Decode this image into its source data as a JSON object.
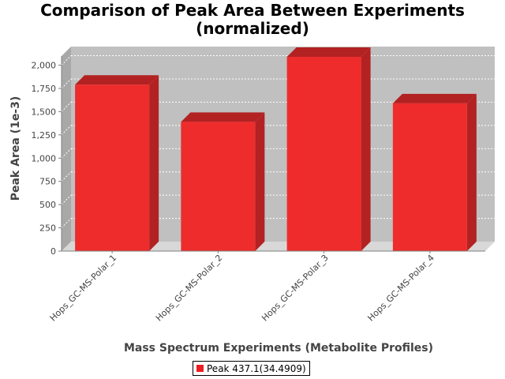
{
  "chart_data": {
    "type": "bar",
    "title_line1": "Comparison of Peak Area Between Experiments",
    "title_line2": "(normalized)",
    "xlabel": "Mass Spectrum Experiments (Metabolite Profiles)",
    "ylabel": "Peak Area (1e-3)",
    "categories": [
      "Hops_GC-MS-Polar_1",
      "Hops_GC-MS-Polar_2",
      "Hops_GC-MS-Polar_3",
      "Hops_GC-MS-Polar_4"
    ],
    "series": [
      {
        "name": "Peak 437.1(34.4909)",
        "values": [
          1790,
          1390,
          2090,
          1590
        ],
        "color": "#ee2c2c"
      }
    ],
    "ylim": [
      0,
      2200
    ],
    "yticks": [
      0,
      250,
      500,
      750,
      1000,
      1250,
      1500,
      1750,
      2000
    ],
    "ytick_labels": [
      "0",
      "250",
      "500",
      "750",
      "1,000",
      "1,250",
      "1,500",
      "1,750",
      "2,000"
    ],
    "grid": true,
    "legend_position": "bottom",
    "style": "3d-bar",
    "colors": {
      "plot_background": "#c0c0c0",
      "bar_front": "#ee2c2c",
      "bar_top": "#b32222",
      "bar_side": "#b32222",
      "grid": "#ffffff",
      "floor": "#d8d8d8"
    }
  }
}
